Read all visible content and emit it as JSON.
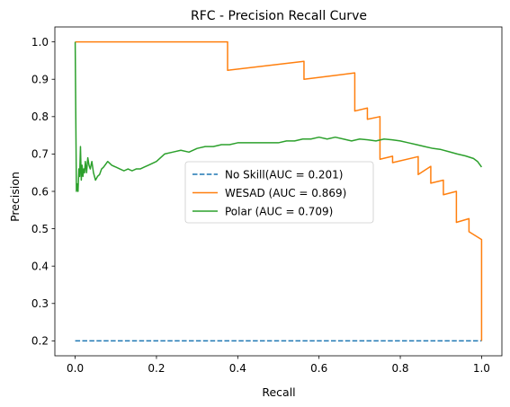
{
  "chart_data": {
    "type": "line",
    "title": "RFC - Precision Recall Curve",
    "xlabel": "Recall",
    "ylabel": "Precision",
    "xlim": [
      -0.05,
      1.05
    ],
    "ylim": [
      0.16,
      1.04
    ],
    "xticks": [
      0.0,
      0.2,
      0.4,
      0.6,
      0.8,
      1.0
    ],
    "xtick_labels": [
      "0.0",
      "0.2",
      "0.4",
      "0.6",
      "0.8",
      "1.0"
    ],
    "yticks": [
      0.2,
      0.3,
      0.4,
      0.5,
      0.6,
      0.7,
      0.8,
      0.9,
      1.0
    ],
    "ytick_labels": [
      "0.2",
      "0.3",
      "0.4",
      "0.5",
      "0.6",
      "0.7",
      "0.8",
      "0.9",
      "1.0"
    ],
    "grid": false,
    "legend_position": "center",
    "series": [
      {
        "name": "No Skill(AUC = 0.201)",
        "color": "#1f77b4",
        "dashed": true,
        "x": [
          0.0,
          1.0
        ],
        "y": [
          0.2,
          0.2
        ]
      },
      {
        "name": "WESAD (AUC = 0.869)",
        "color": "#ff7f0e",
        "dashed": false,
        "x": [
          0.0,
          0.375,
          0.375,
          0.563,
          0.563,
          0.688,
          0.688,
          0.688,
          0.719,
          0.719,
          0.75,
          0.75,
          0.75,
          0.781,
          0.781,
          0.844,
          0.844,
          0.875,
          0.875,
          0.906,
          0.906,
          0.938,
          0.938,
          0.969,
          0.969,
          1.0,
          1.0
        ],
        "y": [
          1.0,
          1.0,
          0.924,
          0.948,
          0.9,
          0.917,
          0.815,
          0.815,
          0.823,
          0.793,
          0.8,
          0.75,
          0.686,
          0.694,
          0.677,
          0.693,
          0.645,
          0.667,
          0.622,
          0.63,
          0.591,
          0.6,
          0.517,
          0.527,
          0.492,
          0.471,
          0.2
        ]
      },
      {
        "name": "Polar (AUC = 0.709)",
        "color": "#2ca02c",
        "dashed": false,
        "x": [
          0.0,
          0.003,
          0.005,
          0.007,
          0.009,
          0.011,
          0.013,
          0.015,
          0.017,
          0.019,
          0.021,
          0.023,
          0.025,
          0.028,
          0.031,
          0.034,
          0.037,
          0.041,
          0.045,
          0.05,
          0.055,
          0.06,
          0.065,
          0.07,
          0.08,
          0.09,
          0.1,
          0.11,
          0.12,
          0.13,
          0.14,
          0.15,
          0.16,
          0.17,
          0.18,
          0.19,
          0.2,
          0.21,
          0.22,
          0.24,
          0.26,
          0.28,
          0.3,
          0.32,
          0.34,
          0.36,
          0.38,
          0.4,
          0.42,
          0.44,
          0.46,
          0.48,
          0.5,
          0.52,
          0.54,
          0.56,
          0.58,
          0.6,
          0.62,
          0.64,
          0.66,
          0.68,
          0.7,
          0.72,
          0.74,
          0.76,
          0.78,
          0.8,
          0.82,
          0.84,
          0.86,
          0.88,
          0.9,
          0.92,
          0.94,
          0.96,
          0.98,
          0.99,
          1.0
        ],
        "y": [
          1.0,
          0.6,
          0.62,
          0.6,
          0.66,
          0.64,
          0.72,
          0.63,
          0.67,
          0.64,
          0.66,
          0.65,
          0.68,
          0.65,
          0.69,
          0.67,
          0.66,
          0.68,
          0.65,
          0.63,
          0.64,
          0.645,
          0.66,
          0.665,
          0.68,
          0.67,
          0.665,
          0.66,
          0.655,
          0.66,
          0.655,
          0.66,
          0.66,
          0.665,
          0.67,
          0.675,
          0.68,
          0.69,
          0.7,
          0.705,
          0.71,
          0.705,
          0.715,
          0.72,
          0.72,
          0.725,
          0.725,
          0.73,
          0.73,
          0.73,
          0.73,
          0.73,
          0.73,
          0.735,
          0.735,
          0.74,
          0.74,
          0.745,
          0.74,
          0.745,
          0.74,
          0.735,
          0.74,
          0.738,
          0.735,
          0.74,
          0.738,
          0.735,
          0.73,
          0.725,
          0.72,
          0.715,
          0.712,
          0.706,
          0.7,
          0.695,
          0.688,
          0.68,
          0.665
        ]
      }
    ]
  }
}
